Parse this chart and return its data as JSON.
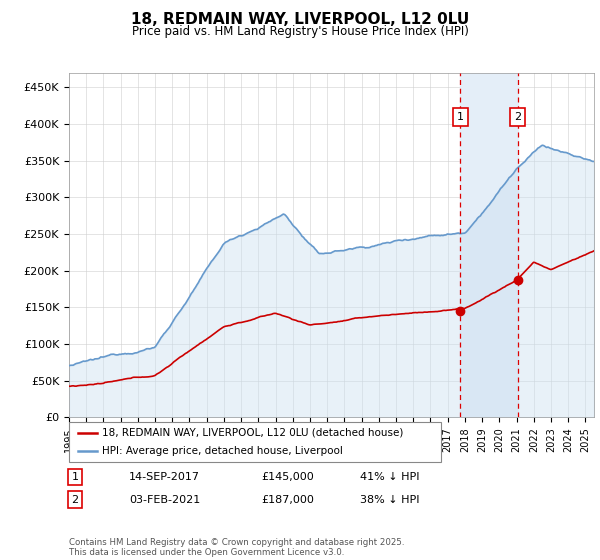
{
  "title": "18, REDMAIN WAY, LIVERPOOL, L12 0LU",
  "subtitle": "Price paid vs. HM Land Registry's House Price Index (HPI)",
  "property_label": "18, REDMAIN WAY, LIVERPOOL, L12 0LU (detached house)",
  "hpi_label": "HPI: Average price, detached house, Liverpool",
  "property_color": "#cc0000",
  "hpi_color": "#6699cc",
  "hpi_fill_color": "#cce0f0",
  "marker1_label": "14-SEP-2017",
  "marker1_price": "£145,000",
  "marker1_pct": "41% ↓ HPI",
  "marker1_year": 2017.71,
  "marker1_price_val": 145000,
  "marker2_label": "03-FEB-2021",
  "marker2_price": "£187,000",
  "marker2_pct": "38% ↓ HPI",
  "marker2_year": 2021.09,
  "marker2_price_val": 187000,
  "ylim": [
    0,
    470000
  ],
  "yticks": [
    0,
    50000,
    100000,
    150000,
    200000,
    250000,
    300000,
    350000,
    400000,
    450000
  ],
  "ytick_labels": [
    "£0",
    "£50K",
    "£100K",
    "£150K",
    "£200K",
    "£250K",
    "£300K",
    "£350K",
    "£400K",
    "£450K"
  ],
  "xlim_start": 1995,
  "xlim_end": 2025.5,
  "footer": "Contains HM Land Registry data © Crown copyright and database right 2025.\nThis data is licensed under the Open Government Licence v3.0.",
  "background_color": "#ffffff",
  "shaded_region_color": "#e4eef8"
}
